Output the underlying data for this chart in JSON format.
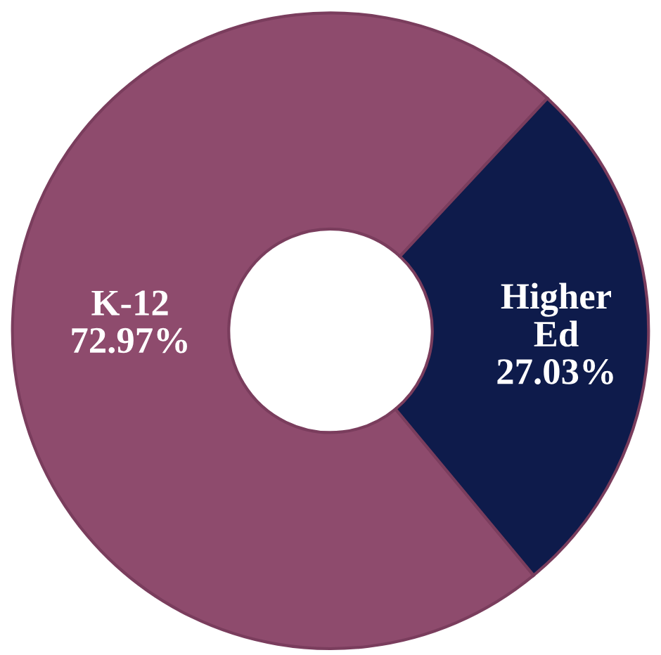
{
  "chart_data": {
    "type": "donut",
    "categories": [
      "K-12",
      "Higher Ed"
    ],
    "values": [
      72.97,
      27.03
    ],
    "colors": [
      "#8e4b6d",
      "#0e1b4b"
    ],
    "value_labels": [
      "72.97%",
      "27.03%"
    ],
    "legend": false
  }
}
